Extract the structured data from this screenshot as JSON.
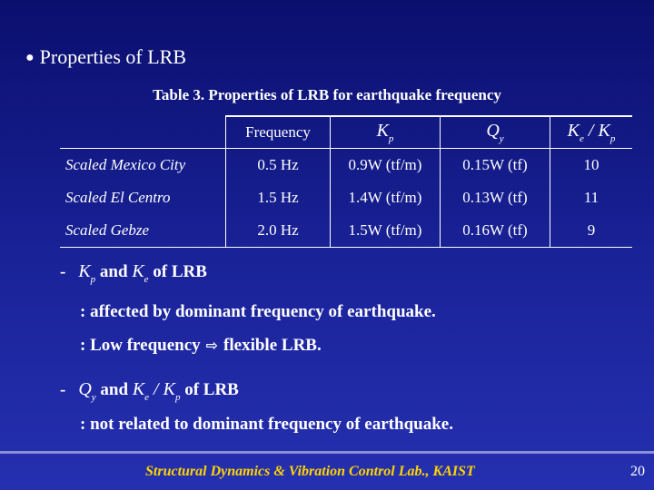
{
  "heading": {
    "bullet": "●",
    "text": "Properties of LRB"
  },
  "caption": "Table 3. Properties of LRB for earthquake frequency",
  "table": {
    "headers": {
      "frequency": "Frequency",
      "kp_sym": "K",
      "kp_sub": "p",
      "qy_sym": "Q",
      "qy_sub": "y",
      "ratio_k1": "K",
      "ratio_k1_sub": "e",
      "ratio_slash": " / ",
      "ratio_k2": "K",
      "ratio_k2_sub": "p"
    },
    "rows": [
      {
        "name": "Scaled Mexico City",
        "frequency": "0.5 Hz",
        "kp": "0.9W (tf/m)",
        "qy": "0.15W (tf)",
        "ratio": "10"
      },
      {
        "name": "Scaled El Centro",
        "frequency": "1.5 Hz",
        "kp": "1.4W (tf/m)",
        "qy": "0.13W (tf)",
        "ratio": "11"
      },
      {
        "name": "Scaled Gebze",
        "frequency": "2.0 Hz",
        "kp": "1.5W (tf/m)",
        "qy": "0.16W (tf)",
        "ratio": "9"
      }
    ]
  },
  "points": {
    "p1": {
      "dash": "-",
      "sym1": "K",
      "sub1": "p",
      "and": "and",
      "sym2": "K",
      "sub2": "e",
      "tail": "of LRB",
      "line1": ": affected by dominant frequency of earthquake.",
      "line2_pre": ": Low frequency",
      "arrow": "⇨",
      "line2_post": "flexible LRB."
    },
    "p2": {
      "dash": "-",
      "sym1": "Q",
      "sub1": "y",
      "and": "and",
      "sym2": "K",
      "sub2": "e",
      "slash": " / ",
      "sym3": "K",
      "sub3": "p",
      "tail": "of LRB",
      "line1": ": not related to dominant frequency of earthquake."
    }
  },
  "footer": {
    "text": "Structural Dynamics & Vibration Control Lab., KAIST",
    "page": "20"
  }
}
